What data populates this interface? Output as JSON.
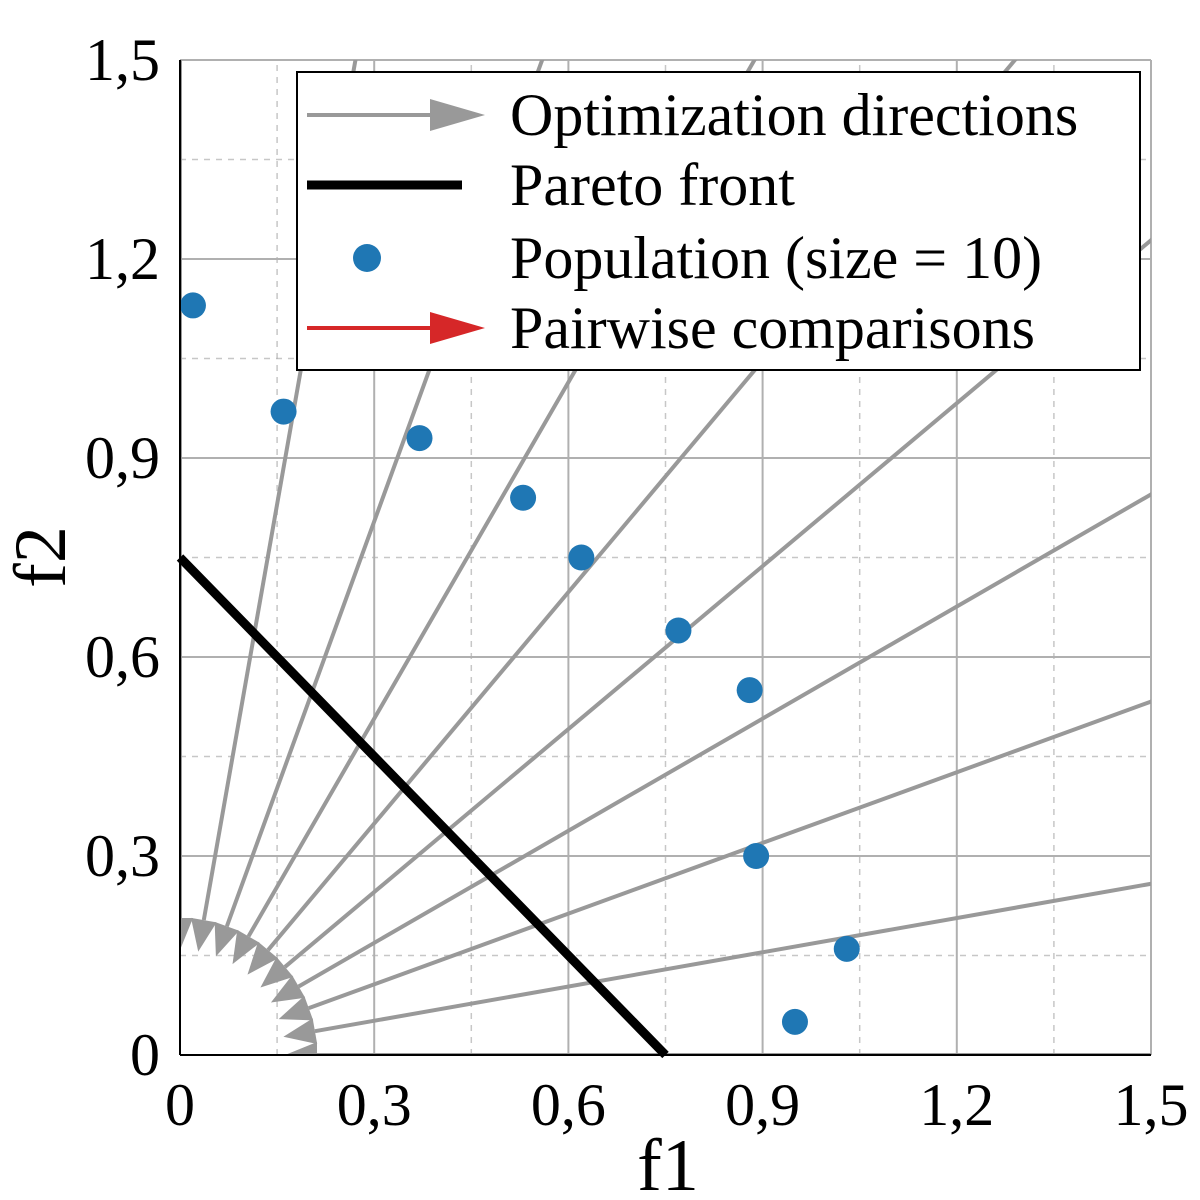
{
  "chart_data": {
    "type": "scatter",
    "xlabel": "f1",
    "ylabel": "f2",
    "xlim": [
      0,
      1.5
    ],
    "ylim": [
      0,
      1.5
    ],
    "xticks": [
      {
        "value": 0,
        "label": "0"
      },
      {
        "value": 0.3,
        "label": "0,3"
      },
      {
        "value": 0.6,
        "label": "0,6"
      },
      {
        "value": 0.9,
        "label": "0,9"
      },
      {
        "value": 1.2,
        "label": "1,2"
      },
      {
        "value": 1.5,
        "label": "1,5"
      }
    ],
    "yticks": [
      {
        "value": 0,
        "label": "0"
      },
      {
        "value": 0.3,
        "label": "0,3"
      },
      {
        "value": 0.6,
        "label": "0,6"
      },
      {
        "value": 0.9,
        "label": "0,9"
      },
      {
        "value": 1.2,
        "label": "1,2"
      },
      {
        "value": 1.5,
        "label": "1,5"
      }
    ],
    "grid": "major solid, minor dashed",
    "legend_position": "top-right",
    "legend": [
      {
        "label": "Optimization directions",
        "marker": "gray-arrow"
      },
      {
        "label": "Pareto front",
        "marker": "black-line"
      },
      {
        "label": "Population (size = 10)",
        "marker": "blue-dot"
      },
      {
        "label": "Pairwise comparisons",
        "marker": "red-arrow"
      }
    ],
    "colors": {
      "directions": "#999999",
      "pareto": "#000000",
      "population": "#1f77b4",
      "pairwise": "#d62728",
      "grid": "#b0b0b0"
    },
    "pareto_front": {
      "x": [
        0,
        0.75
      ],
      "y": [
        0.75,
        0
      ]
    },
    "population": {
      "x": [
        0.02,
        0.16,
        0.37,
        0.53,
        0.62,
        0.77,
        0.88,
        0.89,
        1.03,
        0.95
      ],
      "y": [
        1.13,
        0.97,
        0.93,
        0.84,
        0.75,
        0.64,
        0.55,
        0.3,
        0.16,
        0.05
      ]
    },
    "directions_angles_deg": [
      0,
      10,
      20,
      30,
      40,
      50,
      60,
      70,
      80,
      90
    ]
  }
}
